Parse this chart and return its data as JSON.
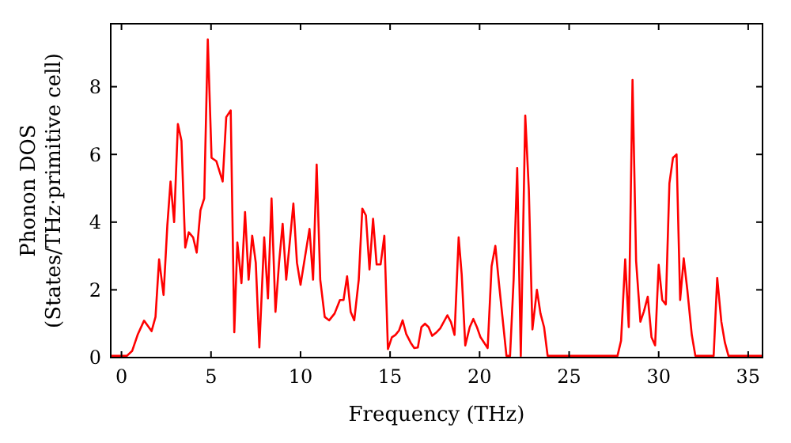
{
  "chart_data": {
    "type": "line",
    "xlabel": "Frequency (THz)",
    "ylabel": "Phonon DOS\n(States/THz·primitive cell)",
    "xlim": [
      -0.6,
      35.8
    ],
    "ylim": [
      0,
      9.86
    ],
    "xticks": [
      0,
      5,
      10,
      15,
      20,
      25,
      30,
      35
    ],
    "yticks": [
      0,
      2,
      4,
      6,
      8
    ],
    "grid": false,
    "marker": "none",
    "line_style": "solid",
    "series": [
      {
        "color": "#ff0000",
        "x": [
          -0.6,
          0.3,
          0.6,
          0.9,
          1.26,
          1.68,
          1.9,
          2.1,
          2.35,
          2.56,
          2.74,
          2.94,
          3.15,
          3.35,
          3.56,
          3.76,
          4.0,
          4.2,
          4.41,
          4.62,
          4.82,
          5.03,
          5.3,
          5.65,
          5.85,
          6.1,
          6.3,
          6.47,
          6.7,
          6.9,
          7.1,
          7.3,
          7.5,
          7.7,
          7.97,
          8.18,
          8.38,
          8.6,
          8.8,
          9.0,
          9.2,
          9.6,
          9.8,
          10.0,
          10.5,
          10.7,
          10.9,
          11.1,
          11.35,
          11.6,
          11.9,
          12.2,
          12.4,
          12.6,
          12.8,
          13.0,
          13.25,
          13.45,
          13.65,
          13.85,
          14.05,
          14.25,
          14.47,
          14.68,
          14.88,
          15.1,
          15.3,
          15.5,
          15.7,
          15.9,
          16.15,
          16.35,
          16.55,
          16.75,
          16.95,
          17.15,
          17.35,
          17.6,
          17.8,
          18.2,
          18.4,
          18.6,
          18.83,
          19.0,
          19.2,
          19.45,
          19.65,
          19.85,
          20.05,
          20.45,
          20.67,
          20.88,
          21.08,
          21.5,
          21.7,
          21.9,
          22.1,
          22.3,
          22.55,
          22.75,
          22.95,
          23.2,
          23.4,
          23.6,
          23.8,
          27.7,
          27.9,
          28.13,
          28.33,
          28.54,
          28.74,
          28.98,
          29.18,
          29.39,
          29.6,
          29.8,
          30.0,
          30.2,
          30.4,
          30.6,
          30.8,
          31.0,
          31.2,
          31.4,
          31.6,
          31.85,
          32.05,
          33.07,
          33.27,
          33.5,
          33.7,
          33.9,
          35.8
        ],
        "values": [
          0.05,
          0.05,
          0.2,
          0.67,
          1.09,
          0.78,
          1.2,
          2.9,
          1.85,
          3.9,
          5.2,
          4.0,
          6.9,
          6.4,
          3.25,
          3.7,
          3.55,
          3.1,
          4.35,
          4.7,
          9.4,
          5.9,
          5.8,
          5.2,
          7.1,
          7.3,
          0.75,
          3.4,
          2.2,
          4.3,
          2.3,
          3.6,
          2.8,
          0.3,
          3.55,
          1.75,
          4.7,
          1.35,
          2.8,
          3.95,
          2.3,
          4.55,
          2.8,
          2.15,
          3.8,
          2.3,
          5.7,
          2.3,
          1.2,
          1.1,
          1.3,
          1.7,
          1.7,
          2.4,
          1.35,
          1.1,
          2.3,
          4.4,
          4.2,
          2.6,
          4.1,
          2.75,
          2.75,
          3.6,
          0.25,
          0.6,
          0.67,
          0.8,
          1.1,
          0.7,
          0.44,
          0.28,
          0.3,
          0.9,
          1.0,
          0.9,
          0.64,
          0.75,
          0.86,
          1.25,
          1.05,
          0.67,
          3.55,
          2.45,
          0.36,
          0.9,
          1.14,
          0.9,
          0.6,
          0.28,
          2.7,
          3.3,
          2.2,
          0.05,
          0.05,
          2.3,
          5.6,
          0.05,
          7.15,
          4.95,
          0.83,
          2.0,
          1.3,
          0.9,
          0.05,
          0.05,
          0.5,
          2.9,
          0.9,
          8.2,
          2.85,
          1.06,
          1.37,
          1.8,
          0.6,
          0.36,
          2.74,
          1.7,
          1.57,
          5.15,
          5.9,
          6.0,
          1.7,
          2.93,
          2.0,
          0.67,
          0.05,
          0.05,
          2.35,
          1.06,
          0.44,
          0.05,
          0.05
        ]
      }
    ]
  }
}
